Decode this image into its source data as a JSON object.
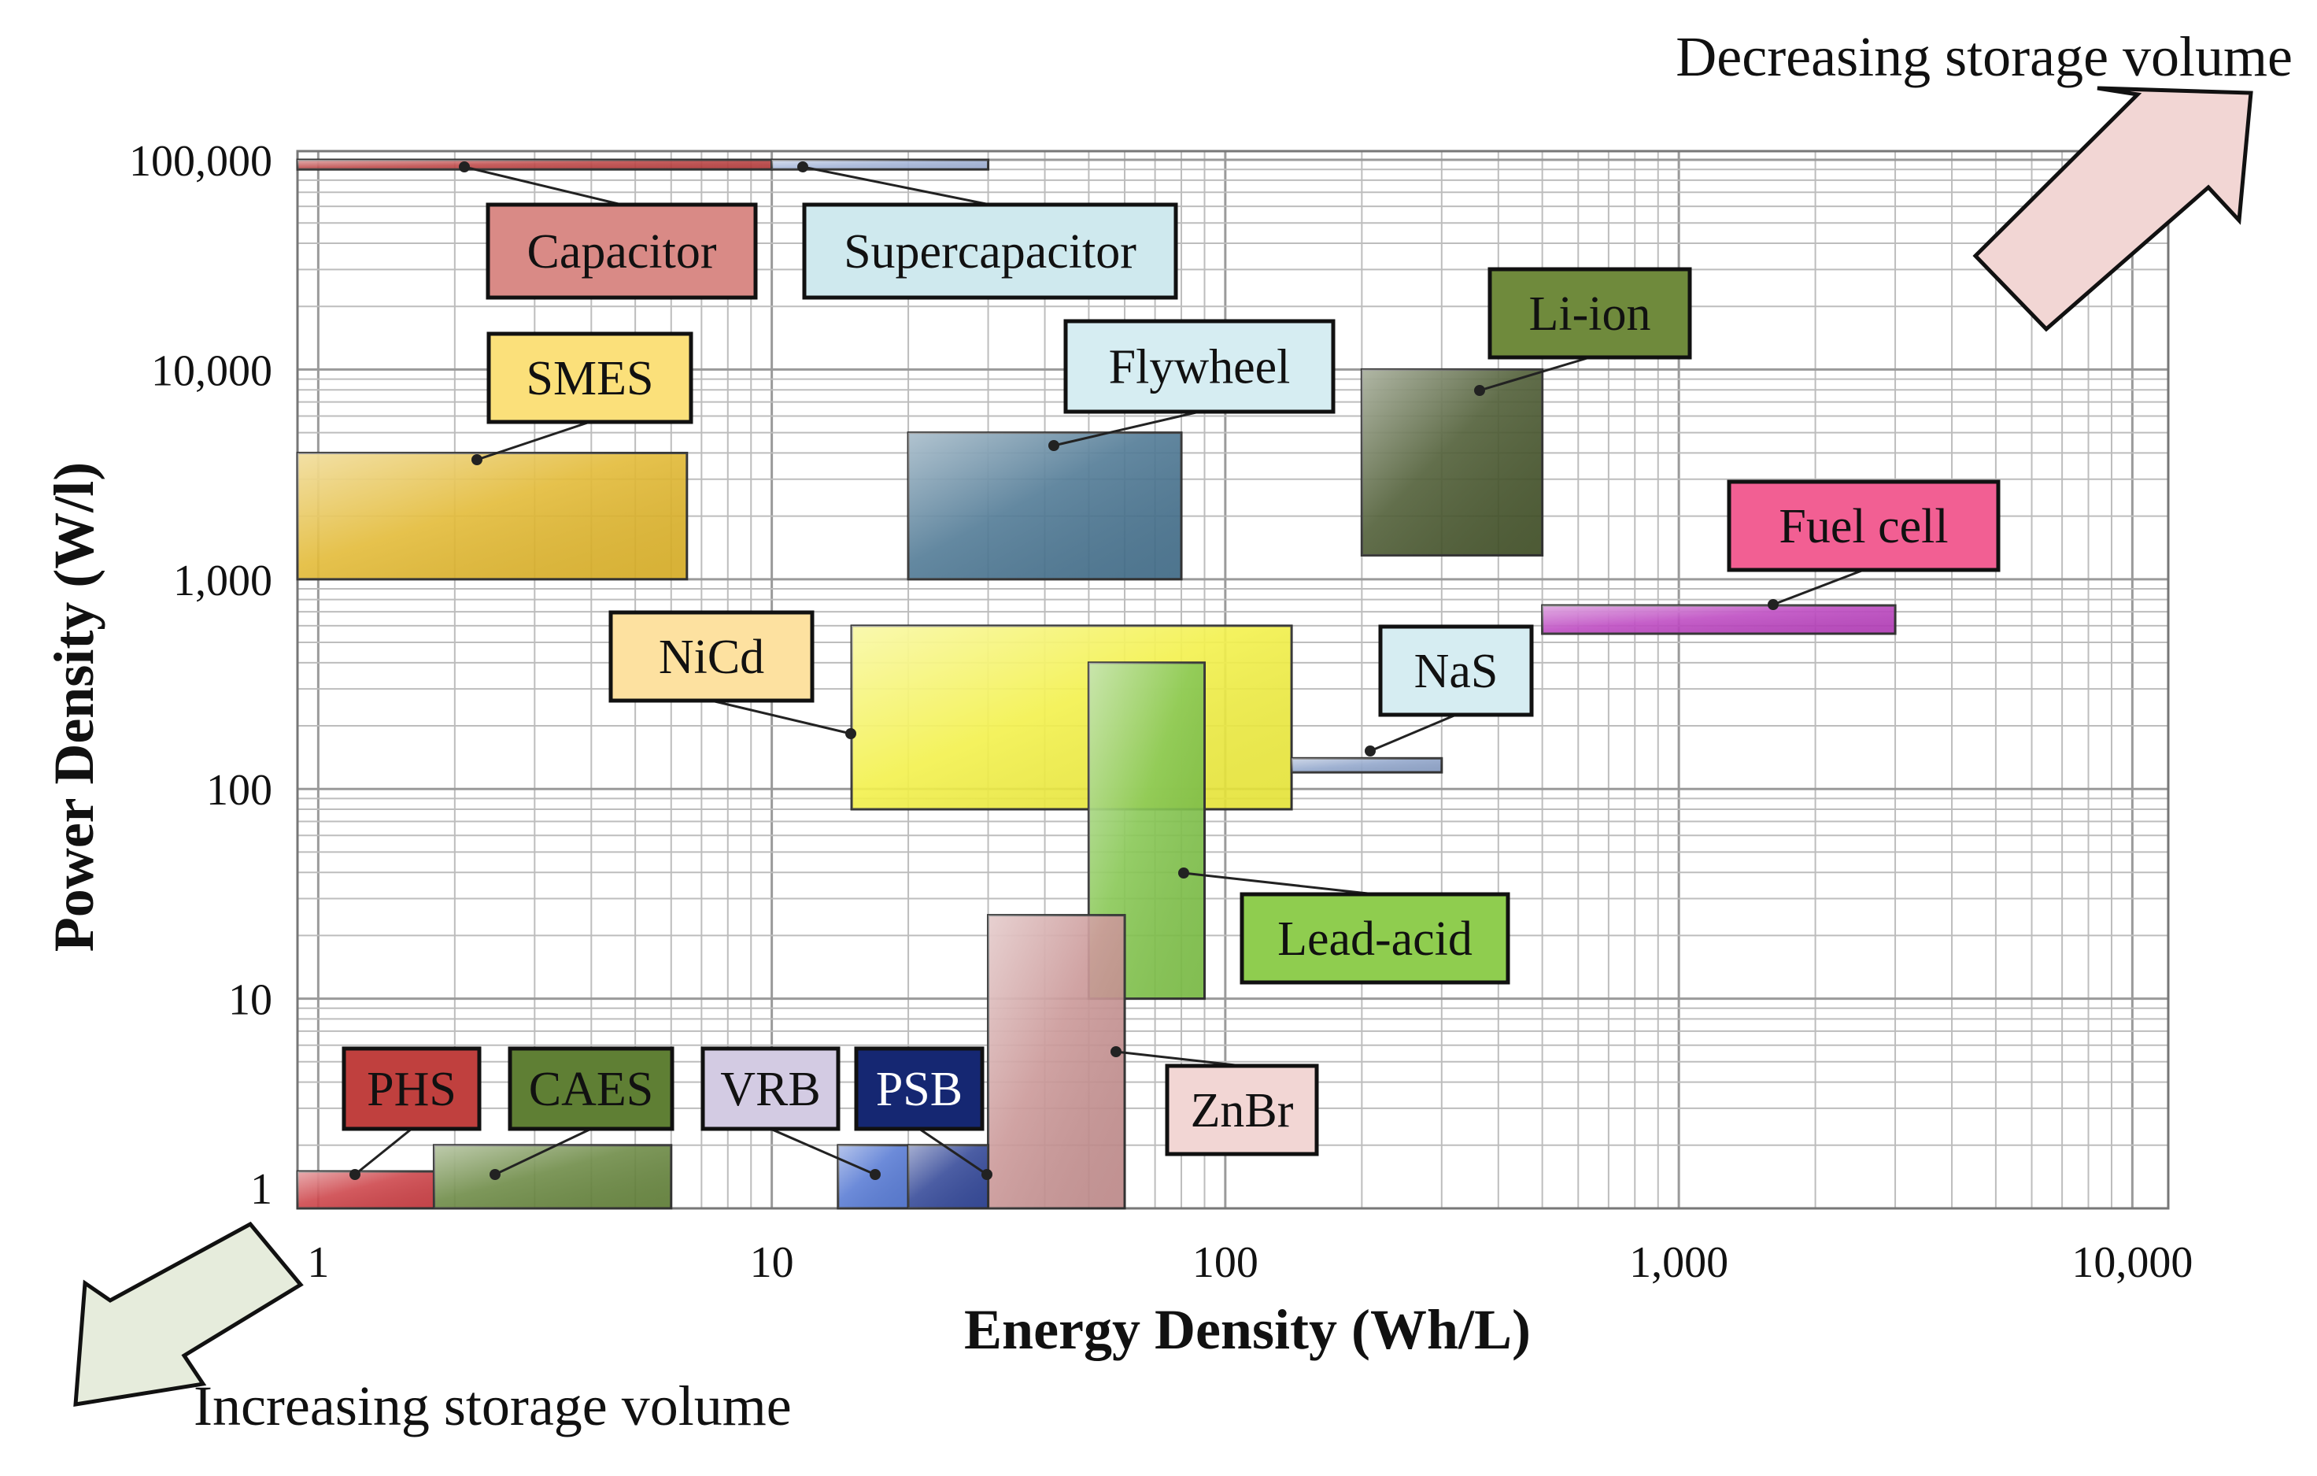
{
  "chart_data": {
    "type": "range-box",
    "title": "",
    "xlabel": "Energy Density (Wh/L)",
    "ylabel": "Power Density (W/l)",
    "xscale": "log",
    "yscale": "log",
    "xlim": [
      0.9,
      12000
    ],
    "ylim": [
      1,
      110000
    ],
    "grid": true,
    "x_ticks": [
      {
        "value": 1,
        "label": "1"
      },
      {
        "value": 10,
        "label": "10"
      },
      {
        "value": 100,
        "label": "100"
      },
      {
        "value": 1000,
        "label": "1,000"
      },
      {
        "value": 10000,
        "label": "10,000"
      }
    ],
    "y_ticks": [
      {
        "value": 1,
        "label": "1"
      },
      {
        "value": 10,
        "label": "10"
      },
      {
        "value": 100,
        "label": "100"
      },
      {
        "value": 1000,
        "label": "1,000"
      },
      {
        "value": 10000,
        "label": "10,000"
      },
      {
        "value": 100000,
        "label": "100,000"
      }
    ],
    "technologies": [
      {
        "id": "capacitor",
        "label": "Capacitor",
        "energy": [
          0.9,
          10
        ],
        "power": [
          90000,
          100000
        ],
        "fill": "#b83838",
        "label_bg": "#d98a86",
        "label_fg": "#111111"
      },
      {
        "id": "supercapacitor",
        "label": "Supercapacitor",
        "energy": [
          10,
          30
        ],
        "power": [
          90000,
          100000
        ],
        "fill": "#9fb0d6",
        "label_bg": "#cfe9ee",
        "label_fg": "#111111"
      },
      {
        "id": "smes",
        "label": "SMES",
        "energy": [
          0.9,
          6.5
        ],
        "power": [
          1000,
          4000
        ],
        "fill": "#e0b424",
        "label_bg": "#fbe07a",
        "label_fg": "#111111"
      },
      {
        "id": "flywheel",
        "label": "Flywheel",
        "energy": [
          20,
          80
        ],
        "power": [
          1000,
          5000
        ],
        "fill": "#3f6d8b",
        "label_bg": "#d6edf2",
        "label_fg": "#111111"
      },
      {
        "id": "li-ion",
        "label": "Li-ion",
        "energy": [
          200,
          500
        ],
        "power": [
          1300,
          10000
        ],
        "fill": "#3e4e22",
        "label_bg": "#6f8a3c",
        "label_fg": "#111111"
      },
      {
        "id": "fuel-cell",
        "label": "Fuel cell",
        "energy": [
          500,
          3000
        ],
        "power": [
          550,
          750
        ],
        "fill": "#b83bbd",
        "label_bg": "#f25f93",
        "label_fg": "#111111"
      },
      {
        "id": "nicd",
        "label": "NiCd",
        "energy": [
          15,
          140
        ],
        "power": [
          80,
          600
        ],
        "fill": "#f2f03a",
        "label_bg": "#fde1a0",
        "label_fg": "#111111"
      },
      {
        "id": "nas",
        "label": "NaS",
        "energy": [
          140,
          300
        ],
        "power": [
          120,
          140
        ],
        "fill": "#8aa0c8",
        "label_bg": "#d6edf2",
        "label_fg": "#111111"
      },
      {
        "id": "lead-acid",
        "label": "Lead-acid",
        "energy": [
          50,
          90
        ],
        "power": [
          10,
          400
        ],
        "fill": "#7cc244",
        "label_bg": "#8fcd4f",
        "label_fg": "#111111"
      },
      {
        "id": "znbr",
        "label": "ZnBr",
        "energy": [
          30,
          60
        ],
        "power": [
          1,
          25
        ],
        "fill": "#c58e8e",
        "label_bg": "#f2d6d4",
        "label_fg": "#111111"
      },
      {
        "id": "phs",
        "label": "PHS",
        "energy": [
          0.9,
          1.8
        ],
        "power": [
          1,
          1.5
        ],
        "fill": "#c9343a",
        "label_bg": "#c0403e",
        "label_fg": "#111111"
      },
      {
        "id": "caes",
        "label": "CAES",
        "energy": [
          1.8,
          6
        ],
        "power": [
          1,
          2
        ],
        "fill": "#5f7f34",
        "label_bg": "#5f7f34",
        "label_fg": "#111111"
      },
      {
        "id": "vrb",
        "label": "VRB",
        "energy": [
          14,
          20
        ],
        "power": [
          1,
          2
        ],
        "fill": "#4a70d0",
        "label_bg": "#d3cbe3",
        "label_fg": "#111111"
      },
      {
        "id": "psb",
        "label": "PSB",
        "energy": [
          20,
          30
        ],
        "power": [
          1,
          2
        ],
        "fill": "#22388f",
        "label_bg": "#152772",
        "label_fg": "#ffffff"
      }
    ],
    "annotations": [
      {
        "id": "decreasing",
        "text": "Decreasing storage volume",
        "direction": "up-right",
        "arrow_color": "#f2d6d4"
      },
      {
        "id": "increasing",
        "text": "Increasing storage volume",
        "direction": "down-left",
        "arrow_color": "#e6ecdc"
      }
    ]
  }
}
